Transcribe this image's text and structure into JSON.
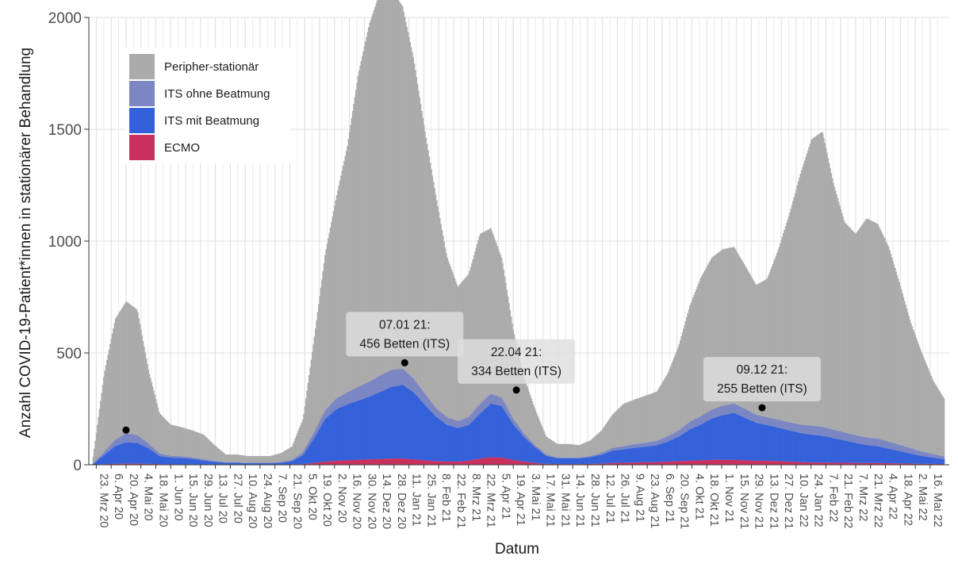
{
  "chart_data": {
    "type": "area",
    "stacked": true,
    "xlabel": "Datum",
    "ylabel": "Anzahl COVID-19-Patient*innen in stationärer Behandlung",
    "ylim": [
      0,
      2000
    ],
    "yticks": [
      0,
      500,
      1000,
      1500,
      2000
    ],
    "grid": true,
    "legend_position": "top-left",
    "x_tick_labels": [
      "23. Mrz 20",
      "6. Apr 20",
      "20. Apr 20",
      "4. Mai 20",
      "18. Mai 20",
      "1. Jun 20",
      "15. Jun 20",
      "29. Jun 20",
      "13. Jul 20",
      "27. Jul 20",
      "10. Aug 20",
      "24. Aug 20",
      "7. Sep 20",
      "21. Sep 20",
      "5. Okt 20",
      "19. Okt 20",
      "2. Nov 20",
      "16. Nov 20",
      "30. Nov 20",
      "14. Dez 20",
      "28. Dez 20",
      "11. Jan 21",
      "25. Jan 21",
      "8. Feb 21",
      "22. Feb 21",
      "8. Mrz 21",
      "22. Mrz 21",
      "5. Apr 21",
      "19. Apr 21",
      "3. Mai 21",
      "17. Mai 21",
      "31. Mai 21",
      "14. Jun 21",
      "28. Jun 21",
      "12. Jul 21",
      "26. Jul 21",
      "9. Aug 21",
      "23. Aug 21",
      "6. Sep 21",
      "20. Sep 21",
      "4. Okt 21",
      "18. Okt 21",
      "1. Nov 21",
      "15. Nov 21",
      "29. Nov 21",
      "13. Dez 21",
      "27. Dez 21",
      "10. Jan 22",
      "24. Jan 22",
      "7. Feb 22",
      "21. Feb 22",
      "7. Mrz 22",
      "21. Mrz 22",
      "4. Apr 22",
      "18. Apr 22",
      "2. Mai 22",
      "16. Mai 22"
    ],
    "series": [
      {
        "name": "Peripher-stationär",
        "color": "#ababab",
        "values": [
          30,
          350,
          540,
          590,
          560,
          330,
          180,
          140,
          130,
          120,
          110,
          70,
          35,
          35,
          30,
          30,
          30,
          40,
          60,
          150,
          420,
          700,
          900,
          1100,
          1400,
          1600,
          1720,
          1700,
          1620,
          1430,
          1180,
          950,
          720,
          600,
          640,
          760,
          740,
          620,
          400,
          250,
          160,
          80,
          60,
          60,
          55,
          70,
          100,
          150,
          190,
          200,
          210,
          220,
          280,
          380,
          520,
          620,
          680,
          700,
          700,
          640,
          580,
          620,
          760,
          930,
          1120,
          1280,
          1320,
          1100,
          940,
          900,
          980,
          960,
          870,
          720,
          560,
          440,
          330,
          260
        ]
      },
      {
        "name": "ITS ohne Beatmung",
        "color": "#7b86c2",
        "values": [
          2,
          14,
          28,
          40,
          36,
          22,
          12,
          8,
          8,
          7,
          6,
          4,
          2,
          2,
          2,
          2,
          2,
          3,
          6,
          14,
          28,
          40,
          48,
          54,
          62,
          68,
          74,
          76,
          72,
          62,
          50,
          40,
          34,
          32,
          36,
          44,
          44,
          38,
          26,
          16,
          10,
          6,
          4,
          4,
          4,
          5,
          8,
          12,
          14,
          16,
          18,
          20,
          24,
          28,
          34,
          38,
          40,
          42,
          42,
          40,
          36,
          34,
          36,
          36,
          38,
          40,
          40,
          38,
          36,
          34,
          34,
          34,
          32,
          28,
          24,
          20,
          16,
          12
        ]
      },
      {
        "name": "ITS mit Beatmung",
        "color": "#3461d9",
        "values": [
          3,
          40,
          80,
          96,
          92,
          70,
          36,
          30,
          28,
          24,
          18,
          12,
          8,
          8,
          6,
          6,
          6,
          8,
          14,
          40,
          110,
          190,
          230,
          250,
          265,
          280,
          300,
          320,
          330,
          300,
          250,
          200,
          165,
          150,
          160,
          200,
          240,
          230,
          160,
          110,
          70,
          36,
          26,
          26,
          26,
          30,
          40,
          55,
          60,
          66,
          70,
          75,
          90,
          110,
          140,
          160,
          185,
          200,
          210,
          190,
          170,
          160,
          150,
          140,
          130,
          125,
          120,
          110,
          100,
          90,
          80,
          75,
          65,
          55,
          45,
          35,
          28,
          22
        ]
      },
      {
        "name": "ECMO",
        "color": "#c9305d",
        "values": [
          1,
          3,
          4,
          5,
          5,
          4,
          3,
          2,
          2,
          2,
          1,
          1,
          1,
          1,
          1,
          1,
          1,
          1,
          2,
          3,
          8,
          14,
          18,
          20,
          22,
          24,
          26,
          28,
          28,
          24,
          20,
          16,
          14,
          14,
          18,
          28,
          34,
          32,
          22,
          14,
          8,
          4,
          3,
          3,
          3,
          4,
          5,
          8,
          9,
          10,
          11,
          12,
          14,
          16,
          18,
          20,
          22,
          22,
          22,
          20,
          18,
          18,
          16,
          14,
          12,
          10,
          10,
          9,
          9,
          8,
          8,
          8,
          7,
          6,
          5,
          4,
          4,
          3
        ]
      }
    ],
    "annotations": [
      {
        "date": "2020-04-20",
        "label_lines": [],
        "value": 155
      },
      {
        "date": "2021-01-07",
        "label_lines": [
          "07.01 21:",
          "456 Betten (ITS)"
        ],
        "value": 456
      },
      {
        "date": "2021-04-22",
        "label_lines": [
          "22.04 21:",
          "334 Betten (ITS)"
        ],
        "value": 334
      },
      {
        "date": "2021-12-09",
        "label_lines": [
          "09.12 21:",
          "255 Betten (ITS)"
        ],
        "value": 255
      }
    ]
  }
}
